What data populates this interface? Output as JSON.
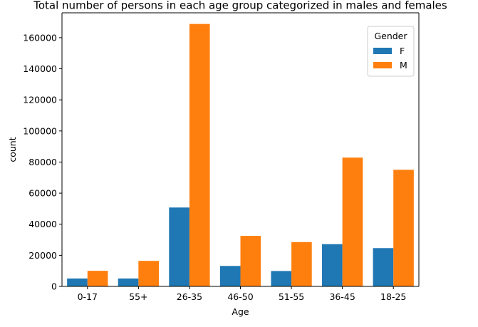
{
  "chart_data": {
    "type": "bar",
    "title": "Total number of persons in each age group categorized in males and females",
    "xlabel": "Age",
    "ylabel": "count",
    "categories": [
      "0-17",
      "55+",
      "26-35",
      "46-50",
      "51-55",
      "36-45",
      "18-25"
    ],
    "series": [
      {
        "name": "F",
        "color": "#1f77b4",
        "values": [
          5083,
          5083,
          50752,
          13156,
          9894,
          27170,
          24628
        ]
      },
      {
        "name": "M",
        "color": "#ff7f0e",
        "values": [
          10019,
          16421,
          168835,
          32502,
          28501,
          82843,
          75032
        ]
      }
    ],
    "ylim": [
      0,
      176000
    ],
    "yticks": [
      0,
      20000,
      40000,
      60000,
      80000,
      100000,
      120000,
      140000,
      160000
    ],
    "grid": false,
    "legend": {
      "title": "Gender",
      "placement": "top-right"
    }
  }
}
